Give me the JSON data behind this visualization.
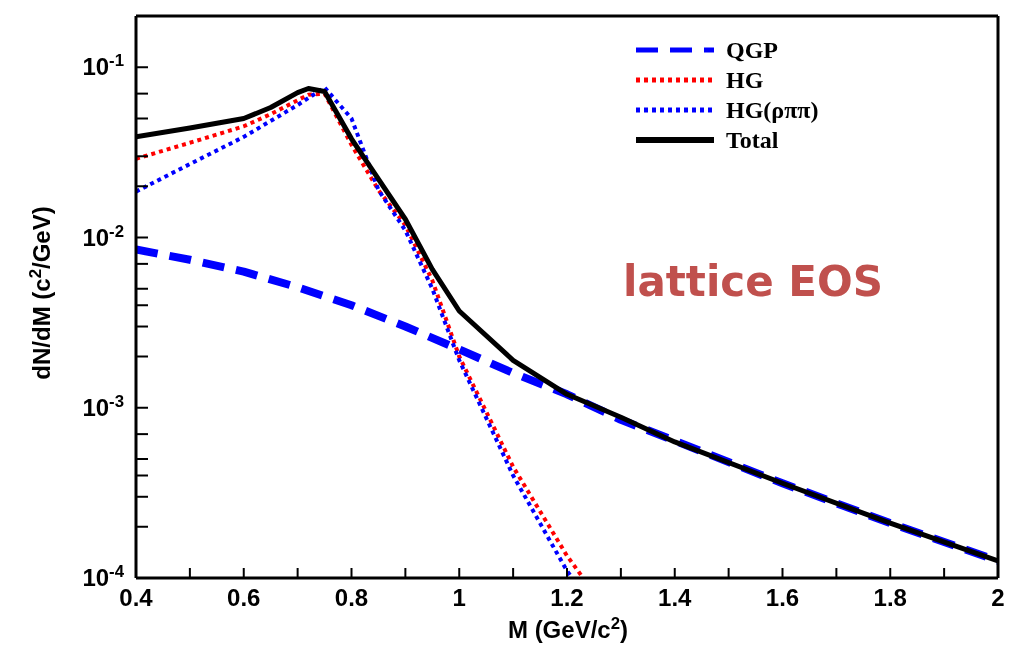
{
  "chart_data": {
    "type": "line",
    "xlabel": "M (GeV/c$^{2}$)",
    "ylabel": "dN/dM (c$^{2}$/GeV)",
    "log": "y",
    "xlim": [
      0.4,
      2
    ],
    "ylim": [
      0.0001,
      0.2
    ],
    "xticks": [
      0.4,
      {
        "value": 0.5,
        "label": null
      },
      0.6,
      {
        "value": 0.7,
        "label": null
      },
      0.8,
      {
        "value": 0.9,
        "label": null
      },
      1,
      {
        "value": 1.1,
        "label": null
      },
      1.2,
      {
        "value": 1.3,
        "label": null
      },
      1.4,
      {
        "value": 1.5,
        "label": null
      },
      1.6,
      {
        "value": 1.7,
        "label": null
      },
      1.8,
      {
        "value": 1.9,
        "label": null
      },
      2
    ],
    "yticks": [
      {
        "value": 0.0001,
        "label": "10$^{-4}$"
      },
      {
        "value": 0.0002,
        "label": null
      },
      {
        "value": 0.0003,
        "label": null
      },
      {
        "value": 0.0004,
        "label": null
      },
      {
        "value": 0.0005,
        "label": null
      },
      {
        "value": 0.0007,
        "label": null
      },
      {
        "value": 0.001,
        "label": "10$^{-3}$"
      },
      {
        "value": 0.002,
        "label": null
      },
      {
        "value": 0.003,
        "label": null
      },
      {
        "value": 0.004,
        "label": null
      },
      {
        "value": 0.005,
        "label": null
      },
      {
        "value": 0.007,
        "label": null
      },
      {
        "value": 0.01,
        "label": "10$^{-2}$"
      },
      {
        "value": 0.02,
        "label": null
      },
      {
        "value": 0.03,
        "label": null
      },
      {
        "value": 0.04,
        "label": null
      },
      {
        "value": 0.05,
        "label": null
      },
      {
        "value": 0.07,
        "label": null
      },
      {
        "value": 0.1,
        "label": "10$^{-1}$"
      }
    ],
    "legend": "top right",
    "marker": "none",
    "annotations": [
      "lattice EOS"
    ],
    "series": [
      {
        "name": "QGP",
        "color": "#0000ff",
        "line_style": "dashed",
        "x": [
          0.4,
          0.5,
          0.6,
          0.7,
          0.8,
          0.9,
          1.0,
          1.1,
          1.2,
          1.3,
          1.4,
          1.6,
          1.8,
          2.0
        ],
        "values": [
          0.0085,
          0.0074,
          0.0063,
          0.0051,
          0.004,
          0.003,
          0.0022,
          0.0016,
          0.0012,
          0.00085,
          0.00064,
          0.00036,
          0.00021,
          0.000126
        ]
      },
      {
        "name": "HG",
        "color": "#ff0000",
        "line_style": "dotted",
        "x": [
          0.4,
          0.5,
          0.6,
          0.65,
          0.7,
          0.72,
          0.75,
          0.8,
          0.85,
          0.9,
          0.95,
          1.0,
          1.1,
          1.2,
          1.23
        ],
        "values": [
          0.029,
          0.036,
          0.045,
          0.053,
          0.064,
          0.069,
          0.07,
          0.035,
          0.019,
          0.0118,
          0.0056,
          0.002,
          0.00045,
          0.000135,
          0.0001
        ]
      },
      {
        "name": "HG(ρππ)",
        "color": "#0000ff",
        "line_style": "dotted",
        "x": [
          0.4,
          0.5,
          0.6,
          0.7,
          0.75,
          0.8,
          0.85,
          0.9,
          0.95,
          1.0,
          1.1,
          1.2,
          1.21
        ],
        "values": [
          0.0186,
          0.027,
          0.039,
          0.06,
          0.076,
          0.05,
          0.019,
          0.011,
          0.005,
          0.0019,
          0.0004,
          0.00011,
          0.0001
        ]
      },
      {
        "name": "Total",
        "color": "#000000",
        "line_style": "solid",
        "x": [
          0.4,
          0.5,
          0.6,
          0.65,
          0.7,
          0.72,
          0.75,
          0.8,
          0.85,
          0.9,
          0.95,
          1.0,
          1.1,
          1.2,
          1.3,
          1.4,
          1.6,
          1.8,
          2.0
        ],
        "values": [
          0.039,
          0.044,
          0.05,
          0.058,
          0.071,
          0.075,
          0.072,
          0.038,
          0.022,
          0.0128,
          0.0065,
          0.0037,
          0.0019,
          0.0012,
          0.00088,
          0.00063,
          0.00036,
          0.00021,
          0.000126
        ]
      }
    ]
  }
}
